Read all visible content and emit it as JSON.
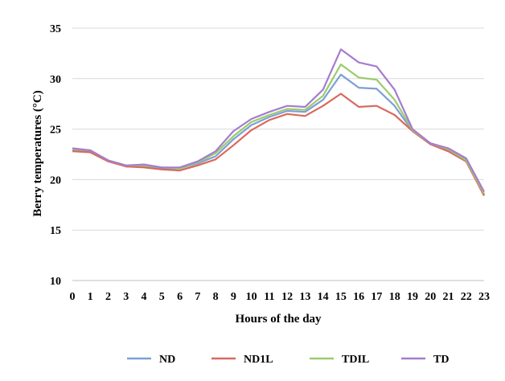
{
  "chart_data": {
    "type": "line",
    "title": "",
    "xlabel": "Hours of the day",
    "ylabel": "Berry temperatures (°C)",
    "ylim": [
      10,
      35
    ],
    "yticks": [
      10,
      15,
      20,
      25,
      30,
      35
    ],
    "x": [
      0,
      1,
      2,
      3,
      4,
      5,
      6,
      7,
      8,
      9,
      10,
      11,
      12,
      13,
      14,
      15,
      16,
      17,
      18,
      19,
      20,
      21,
      22,
      23
    ],
    "grid": "horizontal",
    "legend": "bottom",
    "series": [
      {
        "name": "ND",
        "color": "#7c9fd6",
        "values": [
          22.9,
          22.8,
          21.9,
          21.3,
          21.3,
          21.1,
          21.1,
          21.6,
          22.3,
          24.0,
          25.4,
          26.2,
          26.8,
          26.7,
          27.9,
          30.4,
          29.1,
          29.0,
          27.3,
          24.8,
          23.5,
          22.8,
          21.8,
          18.5
        ]
      },
      {
        "name": "ND1L",
        "color": "#d9695d",
        "values": [
          22.8,
          22.7,
          21.8,
          21.3,
          21.2,
          21.0,
          20.9,
          21.4,
          22.0,
          23.4,
          24.9,
          25.9,
          26.5,
          26.3,
          27.3,
          28.5,
          27.2,
          27.3,
          26.4,
          24.8,
          23.5,
          22.8,
          21.8,
          18.4
        ]
      },
      {
        "name": "TDIL",
        "color": "#9bcc6b",
        "values": [
          23.0,
          22.9,
          21.9,
          21.4,
          21.4,
          21.2,
          21.1,
          21.7,
          22.6,
          24.3,
          25.7,
          26.4,
          27.0,
          26.9,
          28.3,
          31.4,
          30.1,
          29.9,
          27.9,
          24.9,
          23.6,
          23.0,
          21.9,
          18.6
        ]
      },
      {
        "name": "TD",
        "color": "#a57ccf",
        "values": [
          23.1,
          22.9,
          21.9,
          21.4,
          21.5,
          21.2,
          21.2,
          21.8,
          22.8,
          24.8,
          26.0,
          26.7,
          27.3,
          27.2,
          28.9,
          32.9,
          31.6,
          31.2,
          28.9,
          25.0,
          23.6,
          23.1,
          22.1,
          18.8
        ]
      }
    ]
  }
}
